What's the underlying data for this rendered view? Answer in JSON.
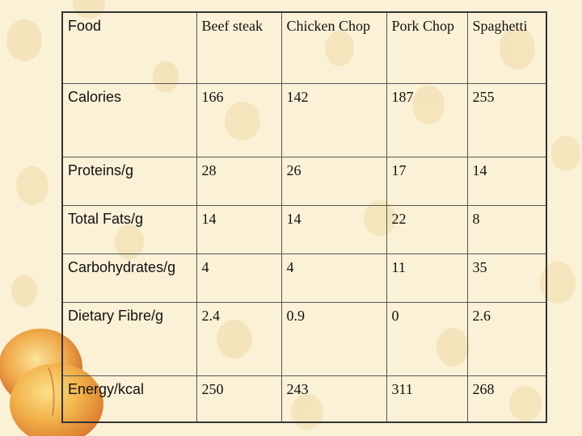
{
  "table": {
    "header": [
      "Food",
      "Beef steak",
      "Chicken Chop",
      "Pork Chop",
      "Spaghetti"
    ],
    "rows": [
      [
        "Calories",
        "166",
        "142",
        "187",
        "255"
      ],
      [
        "Proteins/g",
        "28",
        "26",
        "17",
        "14"
      ],
      [
        "Total Fats/g",
        "14",
        "14",
        "22",
        "8"
      ],
      [
        "Carbohydrates/g",
        "4",
        "4",
        "11",
        "35"
      ],
      [
        "Dietary Fibre/g",
        "2.4",
        "0.9",
        "0",
        "2.6"
      ],
      [
        "Energy/kcal",
        "250",
        "243",
        "311",
        "268"
      ]
    ]
  }
}
